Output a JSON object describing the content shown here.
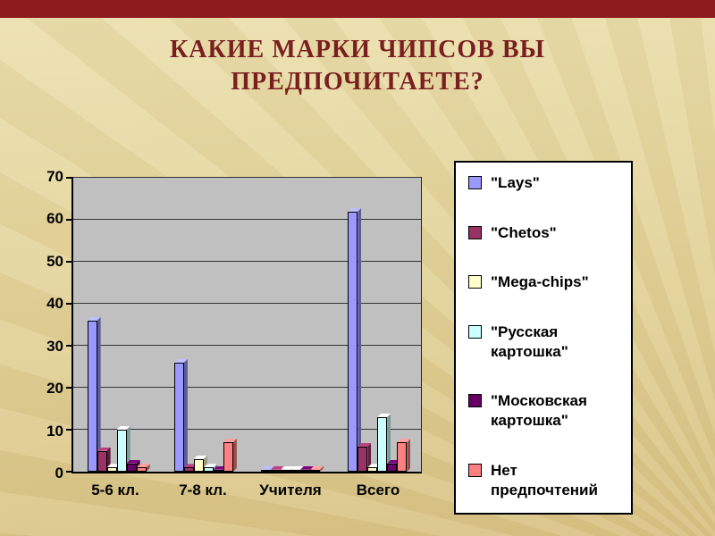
{
  "title": {
    "line1": "КАКИЕ МАРКИ ЧИПСОВ ВЫ",
    "line2": "ПРЕДПОЧИТАЕТЕ?"
  },
  "colors": {
    "accent_bar": "#8E1B1E",
    "title_text": "#7A1F1F",
    "plot_background": "#C0C0C0"
  },
  "chart_data": {
    "type": "bar",
    "title": "Какие марки чипсов вы предпочитаете?",
    "categories": [
      "5-6 кл.",
      "7-8 кл.",
      "Учителя",
      "Всего"
    ],
    "series": [
      {
        "name": "\"Lays\"",
        "color": "#9999FF",
        "values": [
          36,
          26,
          0.5,
          62
        ]
      },
      {
        "name": "\"Chetos\"",
        "color": "#993366",
        "values": [
          5,
          1,
          0.5,
          6
        ]
      },
      {
        "name": "\"Mega-chips\"",
        "color": "#FFFFCC",
        "values": [
          1,
          3,
          0.5,
          1
        ]
      },
      {
        "name": "\"Русская картошка\"",
        "color": "#CCFFFF",
        "values": [
          10,
          1,
          0.5,
          13
        ]
      },
      {
        "name": "\"Московская картошка\"",
        "color": "#660066",
        "values": [
          2,
          0.5,
          0.5,
          2
        ]
      },
      {
        "name": "Нет предпочтений",
        "color": "#FF8080",
        "values": [
          1,
          7,
          0.5,
          7
        ]
      }
    ],
    "xlabel": "",
    "ylabel": "",
    "ylim": [
      0,
      70
    ],
    "ytick_step": 10,
    "grid": true,
    "legend_position": "right"
  }
}
